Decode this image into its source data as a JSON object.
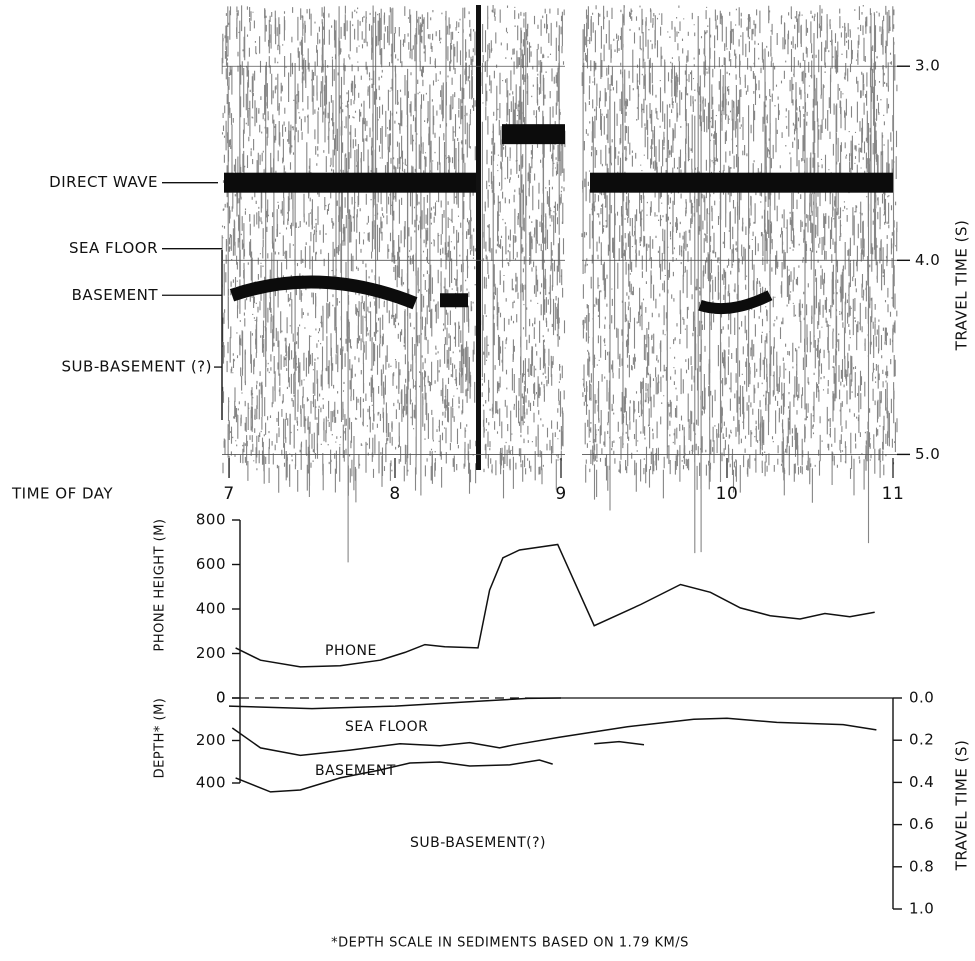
{
  "chart_data": [
    {
      "type": "seismic",
      "xlabel": "TIME OF DAY",
      "ylabel": "TRAVEL TIME (S)",
      "xlim": [
        7,
        11
      ],
      "xticks": [
        7,
        8,
        9,
        10,
        11
      ],
      "ylim": [
        2.7,
        5.07
      ],
      "yticks": [
        {
          "value": 3,
          "label": "3.0"
        },
        {
          "value": 4,
          "label": "4.0"
        },
        {
          "value": 5,
          "label": "5.0"
        }
      ],
      "reflectors": [
        {
          "label": "DIRECT WAVE",
          "time": 3.6
        },
        {
          "label": "SEA FLOOR",
          "time": 3.94
        },
        {
          "label": "BASEMENT",
          "time": 4.18
        },
        {
          "label": "SUB-BASEMENT (?)",
          "time": 4.55
        }
      ]
    },
    {
      "type": "line",
      "ylabel": "PHONE HEIGHT (M)",
      "xlim": [
        7,
        11
      ],
      "ylim": [
        0,
        800
      ],
      "yticks": [
        0,
        200,
        400,
        600,
        800
      ],
      "series": [
        {
          "name": "PHONE",
          "color": "#111111",
          "x": [
            7.04,
            7.19,
            7.43,
            7.67,
            7.91,
            8.06,
            8.18,
            8.3,
            8.5,
            8.57,
            8.65,
            8.75,
            8.98,
            9.2,
            9.48,
            9.72,
            9.9,
            10.08,
            10.26,
            10.44,
            10.59,
            10.74,
            10.89
          ],
          "values": [
            225,
            170,
            140,
            145,
            170,
            205,
            240,
            230,
            225,
            485,
            630,
            665,
            690,
            325,
            420,
            510,
            475,
            405,
            370,
            355,
            380,
            365,
            385
          ]
        }
      ]
    },
    {
      "type": "line",
      "ylabel": "DEPTH* (M)",
      "y2label": "TRAVEL TIME (S)",
      "xlim": [
        7,
        11
      ],
      "ylim": [
        0,
        400
      ],
      "yticks": [
        0,
        200,
        400
      ],
      "inverted": true,
      "y2lim": [
        0,
        1
      ],
      "y2ticks": [
        {
          "value": 0,
          "label": "0.0"
        },
        0.2,
        0.4,
        0.6,
        0.8,
        {
          "value": 1,
          "label": "1.0"
        }
      ],
      "series": [
        {
          "name": "SEA FLOOR",
          "color": "#111111",
          "x": [
            7.0,
            7.5,
            8.0,
            8.5,
            8.8,
            9.0
          ],
          "values": [
            38,
            50,
            38,
            15,
            2,
            0
          ]
        },
        {
          "name": "BASEMENT",
          "color": "#111111",
          "x": [
            7.02,
            7.19,
            7.43,
            7.73,
            8.03,
            8.27,
            8.45,
            8.63,
            8.72,
            8.99,
            9.4,
            9.8,
            10.0,
            10.3,
            10.5,
            10.7,
            10.9,
            9.1,
            9.2,
            9.35,
            9.5
          ],
          "values": [
            141,
            235,
            270,
            245,
            215,
            225,
            210,
            235,
            220,
            185,
            135,
            100,
            95,
            115,
            120,
            125,
            150,
            null,
            215,
            205,
            220
          ]
        },
        {
          "name": "SUB-BASEMENT(?)",
          "color": "#111111",
          "x": [
            7.04,
            7.25,
            7.43,
            7.67,
            7.91,
            8.09,
            8.27,
            8.45,
            8.69,
            8.87,
            8.95
          ],
          "values": [
            376,
            442,
            433,
            376,
            339,
            306,
            301,
            320,
            315,
            292,
            311
          ]
        }
      ],
      "footnote": "*DEPTH SCALE IN SEDIMENTS BASED ON 1.79 KM/S"
    }
  ]
}
